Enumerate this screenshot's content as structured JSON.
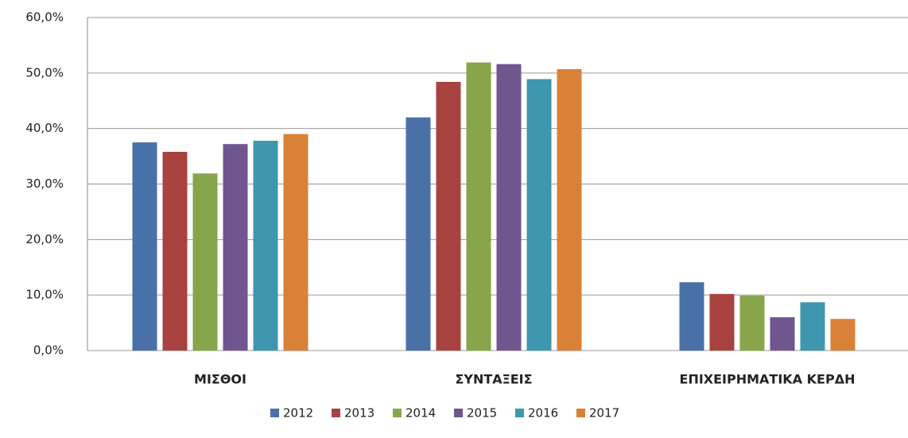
{
  "chart_data": {
    "type": "bar",
    "categories": [
      "ΜΙΣΘΟΙ",
      "ΣΥΝΤΑΞΕΙΣ",
      "ΕΠΙΧΕΙΡΗΜΑΤΙΚΑ ΚΕΡΔΗ"
    ],
    "series": [
      {
        "name": "2012",
        "color": "#4a70a8",
        "values": [
          37.5,
          42.0,
          12.3
        ]
      },
      {
        "name": "2013",
        "color": "#a8423f",
        "values": [
          35.8,
          48.4,
          10.2
        ]
      },
      {
        "name": "2014",
        "color": "#87a54b",
        "values": [
          31.9,
          51.9,
          9.9
        ]
      },
      {
        "name": "2015",
        "color": "#6f568f",
        "values": [
          37.2,
          51.6,
          6.0
        ]
      },
      {
        "name": "2016",
        "color": "#3e97af",
        "values": [
          37.8,
          48.9,
          8.7
        ]
      },
      {
        "name": "2017",
        "color": "#da8138",
        "values": [
          39.0,
          50.7,
          5.7
        ]
      }
    ],
    "ylim": [
      0,
      60
    ],
    "yticks": [
      {
        "value": 0,
        "label": "0,0%"
      },
      {
        "value": 10,
        "label": "10,0%"
      },
      {
        "value": 20,
        "label": "20,0%"
      },
      {
        "value": 30,
        "label": "30,0%"
      },
      {
        "value": 40,
        "label": "40,0%"
      },
      {
        "value": 50,
        "label": "50,0%"
      },
      {
        "value": 60,
        "label": "60,0%"
      }
    ],
    "grid": true,
    "legend": "bottom"
  }
}
